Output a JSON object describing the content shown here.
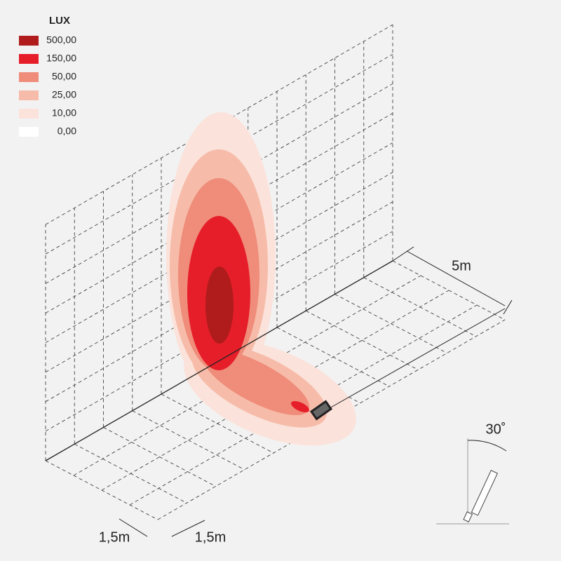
{
  "legend": {
    "title": "LUX",
    "items": [
      {
        "label": "500,00",
        "color": "#b01c1c"
      },
      {
        "label": "150,00",
        "color": "#e61e2a"
      },
      {
        "label": "50,00",
        "color": "#ef8c7a"
      },
      {
        "label": "25,00",
        "color": "#f6bca9"
      },
      {
        "label": "10,00",
        "color": "#fbe2da"
      },
      {
        "label": "0,00",
        "color": "#ffffff"
      }
    ]
  },
  "dimensions": {
    "depth": "5m",
    "grid_width": "1,5m",
    "grid_height": "1,5m",
    "tilt": "30˚"
  }
}
